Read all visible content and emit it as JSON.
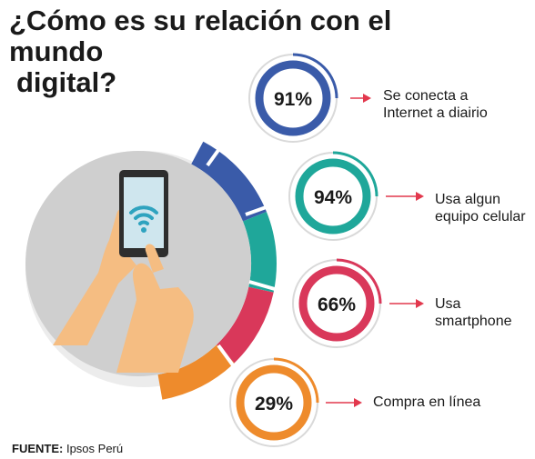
{
  "title_line1": "¿Cómo es su relación con el mundo",
  "title_line2": "digital?",
  "source_label": "FUENTE:",
  "source_value": "Ipsos Perú",
  "chart_data": {
    "type": "bar",
    "title": "¿Cómo es su relación con el mundo digital?",
    "categories": [
      "Se conecta a Internet a diairio",
      "Usa algun equipo celular",
      "Usa smartphone",
      "Compra en línea"
    ],
    "values": [
      91,
      94,
      66,
      29
    ],
    "value_labels": [
      "91%",
      "94%",
      "66%",
      "29%"
    ],
    "unit": "%"
  },
  "items": [
    {
      "pct": "91%",
      "line1": "Se conecta a",
      "line2": "Internet a diairio",
      "color": "#3a5ba9"
    },
    {
      "pct": "94%",
      "line1": "Usa algun",
      "line2": "equipo celular",
      "color": "#1fa79a"
    },
    {
      "pct": "66%",
      "line1": "Usa",
      "line2": "smartphone",
      "color": "#d9385a"
    },
    {
      "pct": "29%",
      "line1": "Compra en línea",
      "line2": "",
      "color": "#ee8b2c"
    }
  ],
  "colors": {
    "hub": "#cfcfcf",
    "hand": "#f5bd82",
    "phone": "#2e2e2e",
    "screen": "#cfe6ee",
    "wifi": "#2fa3bf",
    "ring_gray": "#d9d9d9",
    "arrow": "#e2384d"
  }
}
